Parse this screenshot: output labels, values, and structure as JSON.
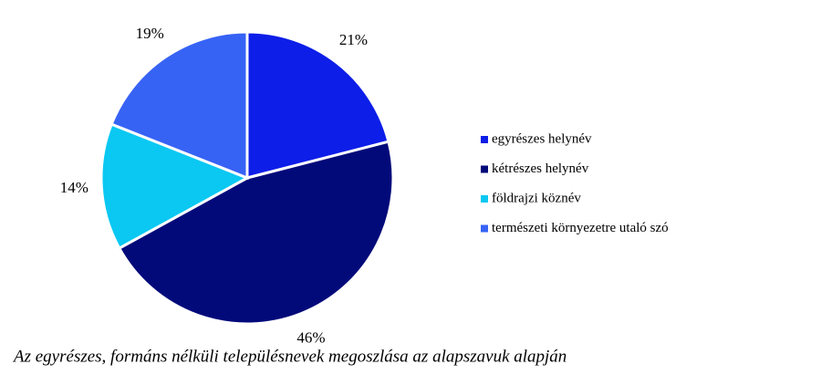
{
  "chart_data": {
    "type": "pie",
    "caption": "Az egyrészes, formáns nélküli településnevek megoszlása az alapszavuk alapján",
    "categories": [
      "egyrészes helynév",
      "kétrészes helynév",
      "földrajzi köznév",
      "természeti környezetre utaló szó"
    ],
    "values": [
      21,
      46,
      14,
      19
    ],
    "value_labels": [
      "21%",
      "46%",
      "14%",
      "19%"
    ],
    "colors": [
      "#0d1ee8",
      "#020a7a",
      "#0ac8f2",
      "#3763f5"
    ],
    "legend": "right"
  }
}
